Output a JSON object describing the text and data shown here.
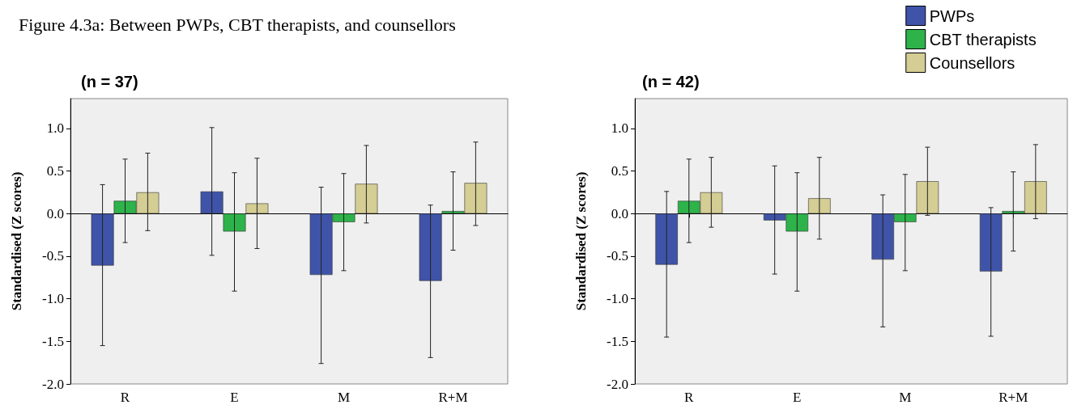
{
  "chart_data": [
    {
      "type": "bar",
      "title": "Figure 4.3a: Between PWPs, CBT therapists, and counsellors",
      "subtitle": "(n = 37)",
      "ylabel": "Standardised (Z scores)",
      "categories": [
        "R",
        "E",
        "M",
        "R+M"
      ],
      "ylim": [
        -2,
        1.35
      ],
      "yticks": [
        {
          "value": -2,
          "label": "-2.0"
        },
        {
          "value": -1.5,
          "label": "-1.5"
        },
        {
          "value": -1,
          "label": "-1.0"
        },
        {
          "value": -0.5,
          "label": "-0.5"
        },
        {
          "value": 0,
          "label": "0.0"
        },
        {
          "value": 0.5,
          "label": "0.5"
        },
        {
          "value": 1,
          "label": "1.0"
        }
      ],
      "series": [
        {
          "color": "#3f54a8",
          "values": [
            -0.61,
            0.26,
            -0.72,
            -0.79
          ],
          "errors": [
            [
              -1.55,
              0.34
            ],
            [
              -0.49,
              1.01
            ],
            [
              -1.76,
              0.31
            ],
            [
              -1.69,
              0.1
            ]
          ]
        },
        {
          "color": "#2db34a",
          "values": [
            0.15,
            -0.21,
            -0.1,
            0.03
          ],
          "errors": [
            [
              -0.34,
              0.64
            ],
            [
              -0.91,
              0.48
            ],
            [
              -0.67,
              0.47
            ],
            [
              -0.43,
              0.49
            ]
          ]
        },
        {
          "color": "#d4cd94",
          "values": [
            0.25,
            0.12,
            0.35,
            0.36
          ],
          "errors": [
            [
              -0.2,
              0.71
            ],
            [
              -0.41,
              0.65
            ],
            [
              -0.11,
              0.8
            ],
            [
              -0.14,
              0.84
            ]
          ]
        }
      ]
    },
    {
      "type": "bar",
      "subtitle": "(n = 42)",
      "ylabel": "Standardised (Z scores)",
      "categories": [
        "R",
        "E",
        "M",
        "R+M"
      ],
      "ylim": [
        -2,
        1.35
      ],
      "yticks": [
        {
          "value": -2,
          "label": "-2.0"
        },
        {
          "value": -1.5,
          "label": "-1.5"
        },
        {
          "value": -1,
          "label": "-1.0"
        },
        {
          "value": -0.5,
          "label": "-0.5"
        },
        {
          "value": 0,
          "label": "0.0"
        },
        {
          "value": 0.5,
          "label": "0.5"
        },
        {
          "value": 1,
          "label": "1.0"
        }
      ],
      "legend": "top right",
      "series": [
        {
          "name": "PWPs",
          "color": "#3f54a8",
          "values": [
            -0.6,
            -0.08,
            -0.54,
            -0.68
          ],
          "errors": [
            [
              -1.45,
              0.26
            ],
            [
              -0.71,
              0.56
            ],
            [
              -1.33,
              0.22
            ],
            [
              -1.44,
              0.07
            ]
          ]
        },
        {
          "name": "CBT therapists",
          "color": "#2db34a",
          "values": [
            0.15,
            -0.21,
            -0.1,
            0.03
          ],
          "errors": [
            [
              -0.34,
              0.64
            ],
            [
              -0.91,
              0.48
            ],
            [
              -0.67,
              0.46
            ],
            [
              -0.44,
              0.49
            ]
          ]
        },
        {
          "name": "Counsellors",
          "color": "#d4cd94",
          "values": [
            0.25,
            0.18,
            0.38,
            0.38
          ],
          "errors": [
            [
              -0.16,
              0.66
            ],
            [
              -0.3,
              0.66
            ],
            [
              -0.02,
              0.78
            ],
            [
              -0.06,
              0.81
            ]
          ]
        }
      ]
    }
  ]
}
